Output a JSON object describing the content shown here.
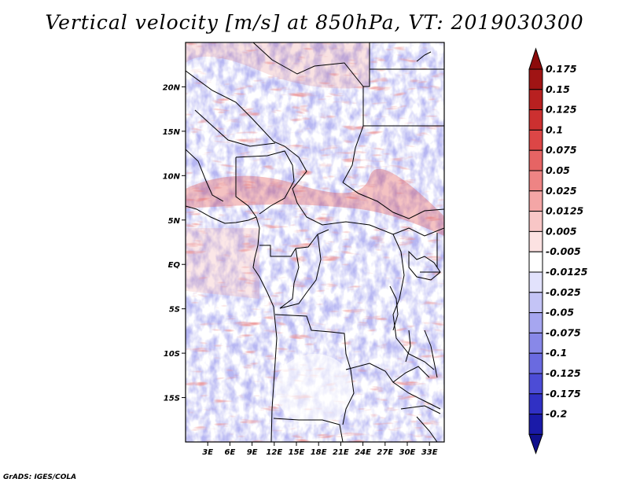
{
  "title": "Vertical velocity [m/s] at 850hPa, VT: 2019030300",
  "footer": "GrADS: IGES/COLA",
  "map": {
    "lon_range": [
      0,
      35
    ],
    "lat_range": [
      -20,
      25
    ],
    "lat_ticks": [
      {
        "value": 20,
        "label": "20N"
      },
      {
        "value": 15,
        "label": "15N"
      },
      {
        "value": 10,
        "label": "10N"
      },
      {
        "value": 5,
        "label": "5N"
      },
      {
        "value": 0,
        "label": "EQ"
      },
      {
        "value": -5,
        "label": "5S"
      },
      {
        "value": -10,
        "label": "10S"
      },
      {
        "value": -15,
        "label": "15S"
      }
    ],
    "lon_ticks": [
      {
        "value": 3,
        "label": "3E"
      },
      {
        "value": 6,
        "label": "6E"
      },
      {
        "value": 9,
        "label": "9E"
      },
      {
        "value": 12,
        "label": "12E"
      },
      {
        "value": 15,
        "label": "15E"
      },
      {
        "value": 18,
        "label": "18E"
      },
      {
        "value": 21,
        "label": "21E"
      },
      {
        "value": 24,
        "label": "24E"
      },
      {
        "value": 27,
        "label": "27E"
      },
      {
        "value": 30,
        "label": "30E"
      },
      {
        "value": 33,
        "label": "33E"
      }
    ]
  },
  "colorbar": {
    "levels": [
      {
        "label": "0.175",
        "color": "#a01414"
      },
      {
        "label": "0.15",
        "color": "#b82020"
      },
      {
        "label": "0.125",
        "color": "#cc3030"
      },
      {
        "label": "0.1",
        "color": "#dc4646"
      },
      {
        "label": "0.075",
        "color": "#e66464"
      },
      {
        "label": "0.05",
        "color": "#ee8484"
      },
      {
        "label": "0.025",
        "color": "#f4a6a6"
      },
      {
        "label": "0.0125",
        "color": "#f8c6c6"
      },
      {
        "label": "0.005",
        "color": "#fce2e2"
      },
      {
        "label": "-0.005",
        "color": "#ffffff"
      },
      {
        "label": "-0.0125",
        "color": "#e2e2fc"
      },
      {
        "label": "-0.025",
        "color": "#c4c4f6"
      },
      {
        "label": "-0.05",
        "color": "#a6a6f0"
      },
      {
        "label": "-0.075",
        "color": "#8888e8"
      },
      {
        "label": "-0.1",
        "color": "#6a6ae0"
      },
      {
        "label": "-0.125",
        "color": "#4c4cd6"
      },
      {
        "label": "-0.175",
        "color": "#3030c4"
      },
      {
        "label": "-0.2",
        "color": "#1a1aa8"
      }
    ],
    "top_cap_color": "#8c0a0a",
    "bottom_cap_color": "#10108c"
  }
}
